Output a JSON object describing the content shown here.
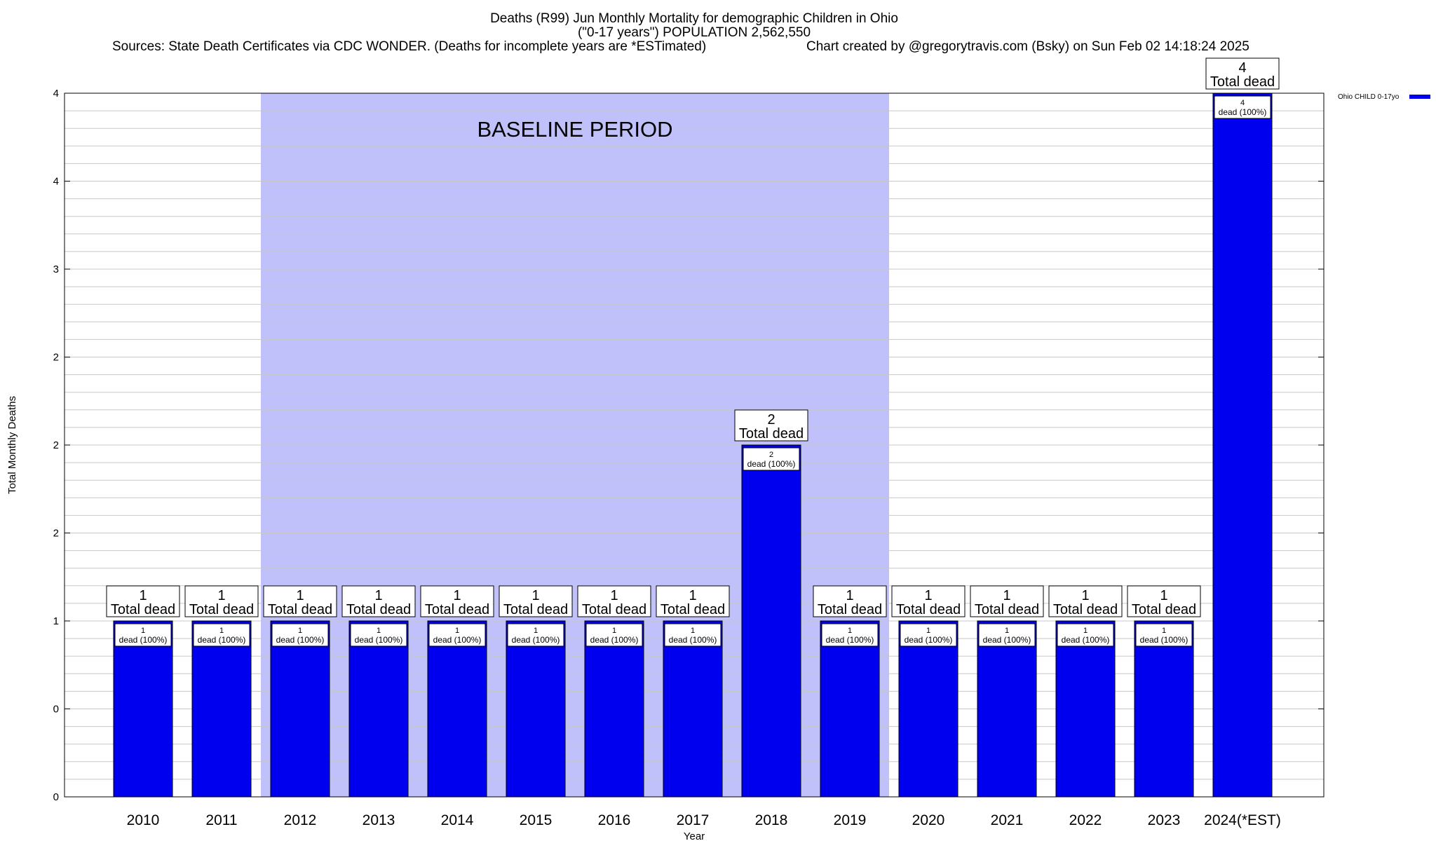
{
  "chart_data": {
    "type": "bar",
    "title": "Deaths (R99) Jun Monthly Mortality for demographic Children in Ohio",
    "subtitle": "(\"0-17 years\") POPULATION 2,562,550",
    "sources": "Sources: State Death Certificates via CDC WONDER. (Deaths for incomplete years are *ESTimated)",
    "credit": "Chart created by @gregorytravis.com (Bsky) on Sun Feb 02 14:18:24 2025",
    "xlabel": "Year",
    "ylabel": "Total Monthly Deaths",
    "categories": [
      "2010",
      "2011",
      "2012",
      "2013",
      "2014",
      "2015",
      "2016",
      "2017",
      "2018",
      "2019",
      "2020",
      "2021",
      "2022",
      "2023",
      "2024(*EST)"
    ],
    "series": [
      {
        "name": "Ohio CHILD 0-17yo",
        "color": "#0000ee",
        "values": [
          1,
          1,
          1,
          1,
          1,
          1,
          1,
          1,
          2,
          1,
          1,
          1,
          1,
          1,
          4
        ]
      }
    ],
    "total_labels": [
      "1",
      "1",
      "1",
      "1",
      "1",
      "1",
      "1",
      "1",
      "2",
      "1",
      "1",
      "1",
      "1",
      "1",
      "4"
    ],
    "total_suffix": "Total dead",
    "inner_labels": [
      "1",
      "1",
      "1",
      "1",
      "1",
      "1",
      "1",
      "1",
      "2",
      "1",
      "1",
      "1",
      "1",
      "1",
      "4"
    ],
    "inner_suffix": "dead (100%)",
    "ylim": [
      0,
      4
    ],
    "ytick_values": [
      0,
      0.5,
      1,
      1.5,
      2,
      2.5,
      3,
      3.5,
      4
    ],
    "ytick_labels": [
      "0",
      "0",
      "1",
      "2",
      "2",
      "2",
      "3",
      "4",
      "4"
    ],
    "minor_grid_per_major": 5,
    "baseline_period": {
      "label": "BASELINE PERIOD",
      "start": "2012",
      "end": "2019",
      "color": "#c0c0fa"
    },
    "grid": true,
    "legend_position": "top-right"
  }
}
